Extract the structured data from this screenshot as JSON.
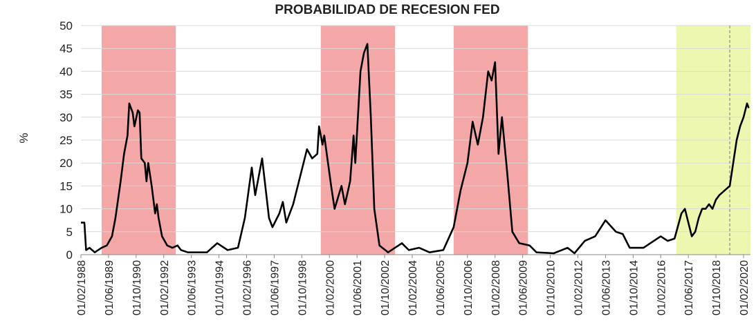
{
  "chart_data": {
    "type": "line",
    "title": "PROBABILIDAD DE RECESION FED",
    "y_label": "%",
    "x": [
      "01/02/1988",
      "01/04/1988",
      "01/05/1988",
      "01/07/1988",
      "01/10/1988",
      "01/02/1989",
      "01/05/1989",
      "01/08/1989",
      "01/10/1989",
      "01/01/1990",
      "01/03/1990",
      "01/05/1990",
      "01/06/1990",
      "01/08/1990",
      "01/09/1990",
      "01/11/1990",
      "01/12/1990",
      "01/01/1991",
      "01/03/1991",
      "01/04/1991",
      "01/05/1991",
      "01/07/1991",
      "01/09/1991",
      "01/10/1991",
      "01/11/1991",
      "01/01/1992",
      "01/04/1992",
      "01/07/1992",
      "01/10/1992",
      "01/12/1992",
      "01/04/1993",
      "01/08/1993",
      "01/03/1994",
      "01/09/1994",
      "01/03/1995",
      "01/09/1995",
      "01/01/1996",
      "01/05/1996",
      "01/07/1996",
      "01/11/1996",
      "01/03/1997",
      "01/05/1997",
      "01/09/1997",
      "01/11/1997",
      "01/01/1998",
      "01/05/1998",
      "01/11/1998",
      "01/01/1999",
      "01/04/1999",
      "01/07/1999",
      "01/08/1999",
      "01/10/1999",
      "01/11/1999",
      "01/03/2000",
      "01/05/2000",
      "01/09/2000",
      "01/11/2000",
      "01/02/2001",
      "01/04/2001",
      "01/05/2001",
      "01/08/2001",
      "01/10/2001",
      "01/12/2001",
      "01/02/2002",
      "01/04/2002",
      "01/07/2002",
      "01/12/2002",
      "01/08/2003",
      "01/12/2003",
      "01/06/2004",
      "01/12/2004",
      "01/08/2005",
      "01/02/2006",
      "01/06/2006",
      "01/10/2006",
      "01/01/2007",
      "01/04/2007",
      "01/07/2007",
      "01/10/2007",
      "01/12/2007",
      "01/02/2008",
      "01/04/2008",
      "01/06/2008",
      "01/09/2008",
      "01/12/2008",
      "01/04/2009",
      "01/10/2009",
      "01/02/2010",
      "01/12/2010",
      "01/08/2011",
      "01/12/2011",
      "01/06/2012",
      "01/12/2012",
      "01/06/2013",
      "01/12/2013",
      "01/04/2014",
      "01/08/2014",
      "01/04/2015",
      "01/10/2015",
      "01/02/2016",
      "01/06/2016",
      "01/10/2016",
      "01/02/2017",
      "01/04/2017",
      "01/06/2017",
      "01/08/2017",
      "01/10/2017",
      "01/12/2017",
      "01/02/2018",
      "01/04/2018",
      "01/06/2018",
      "01/08/2018",
      "01/10/2018",
      "01/12/2018",
      "01/03/2019",
      "01/06/2019",
      "01/08/2019",
      "01/10/2019",
      "01/12/2019",
      "01/02/2020",
      "01/04/2020",
      "01/05/2020"
    ],
    "series": [
      {
        "color": "#000000",
        "values": [
          7,
          7,
          1,
          1.5,
          0.5,
          1.5,
          2,
          4,
          8,
          16,
          22,
          26,
          33,
          31,
          28,
          31.5,
          31,
          21,
          20,
          16,
          20,
          15,
          9,
          11,
          8,
          4,
          2,
          1.5,
          2,
          1,
          0.5,
          0.5,
          0.5,
          2.5,
          1,
          1.5,
          8,
          19,
          13,
          21,
          8,
          6,
          9,
          11.5,
          7,
          11,
          20,
          23,
          21,
          22,
          28,
          24,
          26,
          15,
          10,
          15,
          11,
          16,
          26,
          20,
          40,
          44,
          46,
          30,
          10,
          2,
          0.5,
          2.5,
          1,
          1.5,
          0.5,
          1,
          6,
          14,
          20,
          29,
          24,
          30,
          40,
          38,
          42,
          22,
          30,
          18,
          5,
          2.5,
          2,
          0.5,
          0.3,
          1.5,
          0.3,
          3,
          4,
          7.5,
          5,
          4.5,
          1.5,
          1.5,
          3,
          4,
          3,
          3.5,
          9,
          10,
          7,
          4,
          5,
          8,
          10,
          10,
          11,
          10,
          12,
          13,
          14,
          15,
          20,
          25,
          28,
          30,
          33,
          32
        ]
      }
    ],
    "xlim": [
      "01/02/1988",
      "01/06/2020"
    ],
    "xticks": [
      "01/02/1988",
      "01/06/1989",
      "01/10/1990",
      "01/02/1992",
      "01/06/1993",
      "01/10/1994",
      "01/02/1996",
      "01/06/1997",
      "01/10/1998",
      "01/02/2000",
      "01/06/2001",
      "01/10/2002",
      "01/02/2004",
      "01/06/2005",
      "01/10/2006",
      "01/02/2008",
      "01/06/2009",
      "01/10/2010",
      "01/02/2012",
      "01/06/2013",
      "01/10/2014",
      "01/02/2016",
      "01/06/2017",
      "01/10/2018",
      "01/02/2020"
    ],
    "ylim": [
      0,
      50
    ],
    "yticks": [
      0,
      5,
      10,
      15,
      20,
      25,
      30,
      35,
      40,
      45,
      50
    ],
    "grid": true,
    "shaded_regions": [
      {
        "start": "01/02/1989",
        "end": "01/09/1992",
        "color": "#f4a7a7"
      },
      {
        "start": "01/09/1999",
        "end": "01/04/2003",
        "color": "#f4a7a7"
      },
      {
        "start": "01/02/2006",
        "end": "01/09/2009",
        "color": "#f4a7a7"
      },
      {
        "start": "01/11/2016",
        "end": "01/06/2020",
        "color": "#eef7b0"
      }
    ],
    "vline": {
      "x": "01/06/2019",
      "color": "#888888"
    }
  }
}
